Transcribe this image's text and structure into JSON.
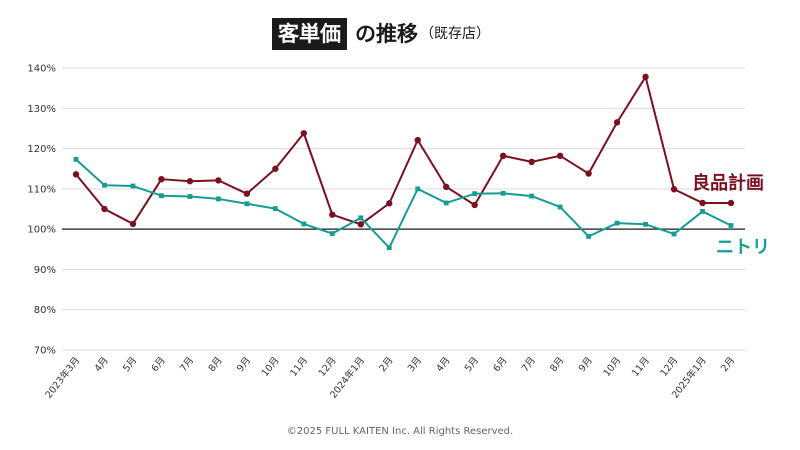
{
  "title": {
    "highlight": "客単価",
    "main": "の推移",
    "sub": "（既存店）"
  },
  "footer": "©2025 FULL KAITEN Inc. All Rights Reserved.",
  "colors": {
    "ryohin": "#7b1020",
    "nitori": "#159c94",
    "grid": "#d9d9d9",
    "baseline": "#1a1a1a"
  },
  "chart_data": {
    "type": "line",
    "title": "客単価の推移（既存店）",
    "categories": [
      "2023年3月",
      "4月",
      "5月",
      "6月",
      "7月",
      "8月",
      "9月",
      "10月",
      "11月",
      "12月",
      "2024年1月",
      "2月",
      "3月",
      "4月",
      "5月",
      "6月",
      "7月",
      "8月",
      "9月",
      "10月",
      "11月",
      "12月",
      "2025年1月",
      "2月"
    ],
    "y_ticks": [
      "70%",
      "80%",
      "90%",
      "100%",
      "110%",
      "120%",
      "130%",
      "140%"
    ],
    "ylim": [
      70,
      140
    ],
    "y_unit": "%",
    "baseline": 100,
    "grid": true,
    "series": [
      {
        "name": "良品計画",
        "color": "#7b1020",
        "marker": "circle",
        "values": [
          113.6,
          105.0,
          101.3,
          112.4,
          111.9,
          112.1,
          108.8,
          115.0,
          123.8,
          103.6,
          101.2,
          106.4,
          122.1,
          110.5,
          106.0,
          118.2,
          116.7,
          118.2,
          113.8,
          126.5,
          137.8,
          109.9,
          106.5,
          106.5
        ]
      },
      {
        "name": "ニトリ",
        "color": "#159c94",
        "marker": "square",
        "values": [
          117.3,
          110.9,
          110.7,
          108.3,
          108.1,
          107.5,
          106.3,
          105.1,
          101.3,
          98.9,
          102.8,
          95.4,
          110.0,
          106.5,
          108.8,
          108.9,
          108.2,
          105.5,
          98.2,
          101.5,
          101.2,
          98.8,
          104.4,
          100.9
        ]
      }
    ]
  }
}
